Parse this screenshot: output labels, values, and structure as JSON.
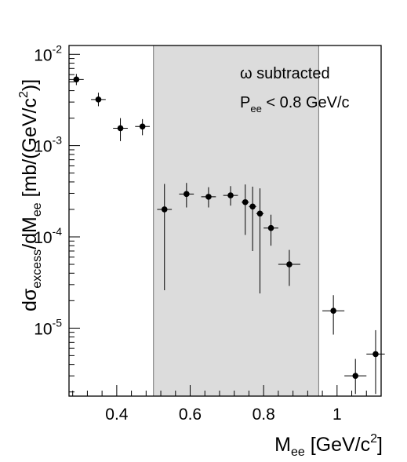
{
  "chart_data": {
    "type": "scatter",
    "title": "",
    "xlabel": {
      "main": "M",
      "sub": "ee",
      "rest": " [GeV/c",
      "sup": "2",
      "end": "]"
    },
    "ylabel": {
      "a": "d",
      "sigma": "σ",
      "sub1": "excess",
      "b": "/dM",
      "sub2": "ee",
      "c": " [mb/(GeV/c",
      "sup": "2",
      "d": ")]"
    },
    "x_axis": {
      "min": 0.27,
      "max": 1.12,
      "ticks": [
        "0.4",
        "0.6",
        "0.8",
        "1"
      ],
      "tick_values": [
        0.4,
        0.6,
        0.8,
        1.0
      ]
    },
    "y_axis": {
      "scale": "log",
      "min": 1.8e-06,
      "max": 0.0125,
      "ticks": [
        {
          "value": 1e-05,
          "base": "10",
          "exp": "-5"
        },
        {
          "value": 0.0001,
          "base": "10",
          "exp": "-4"
        },
        {
          "value": 0.001,
          "base": "10",
          "exp": "-3"
        },
        {
          "value": 0.01,
          "base": "10",
          "exp": "-2"
        }
      ]
    },
    "grid": false,
    "shaded_region": {
      "x_from": 0.5,
      "x_to": 0.95,
      "color": "#dcdcdc"
    },
    "annotations": {
      "line1": "ω subtracted",
      "line2": {
        "main": "P",
        "sub": "ee",
        "rest": " < 0.8 GeV/c"
      }
    },
    "points": [
      {
        "x": 0.29,
        "xerr": 0.02,
        "y": 0.0053,
        "ylo": 0.0046,
        "yhi": 0.0061
      },
      {
        "x": 0.35,
        "xerr": 0.02,
        "y": 0.0032,
        "ylo": 0.0027,
        "yhi": 0.0038
      },
      {
        "x": 0.41,
        "xerr": 0.02,
        "y": 0.00155,
        "ylo": 0.00112,
        "yhi": 0.002
      },
      {
        "x": 0.47,
        "xerr": 0.02,
        "y": 0.00162,
        "ylo": 0.0013,
        "yhi": 0.00195
      },
      {
        "x": 0.53,
        "xerr": 0.02,
        "y": 0.0002,
        "ylo": 2.6e-05,
        "yhi": 0.00038
      },
      {
        "x": 0.59,
        "xerr": 0.02,
        "y": 0.000295,
        "ylo": 0.00021,
        "yhi": 0.00039
      },
      {
        "x": 0.65,
        "xerr": 0.02,
        "y": 0.000275,
        "ylo": 0.00021,
        "yhi": 0.00035
      },
      {
        "x": 0.71,
        "xerr": 0.02,
        "y": 0.000285,
        "ylo": 0.00022,
        "yhi": 0.00036
      },
      {
        "x": 0.75,
        "xerr": 0.01,
        "y": 0.00024,
        "ylo": 0.000105,
        "yhi": 0.000375
      },
      {
        "x": 0.77,
        "xerr": 0.01,
        "y": 0.000215,
        "ylo": 7e-05,
        "yhi": 0.000355
      },
      {
        "x": 0.79,
        "xerr": 0.01,
        "y": 0.00018,
        "ylo": 2.4e-05,
        "yhi": 0.00034
      },
      {
        "x": 0.82,
        "xerr": 0.02,
        "y": 0.000125,
        "ylo": 8e-05,
        "yhi": 0.000175
      },
      {
        "x": 0.87,
        "xerr": 0.03,
        "y": 5e-05,
        "ylo": 2.9e-05,
        "yhi": 7.2e-05
      },
      {
        "x": 0.99,
        "xerr": 0.03,
        "y": 1.55e-05,
        "ylo": 8.5e-06,
        "yhi": 2.3e-05
      },
      {
        "x": 1.05,
        "xerr": 0.03,
        "y": 3e-06,
        "ylo": 1.9e-06,
        "yhi": 4.6e-06
      },
      {
        "x": 1.105,
        "xerr": 0.025,
        "y": 5.2e-06,
        "ylo": 1.9e-06,
        "yhi": 9.5e-06
      }
    ]
  }
}
